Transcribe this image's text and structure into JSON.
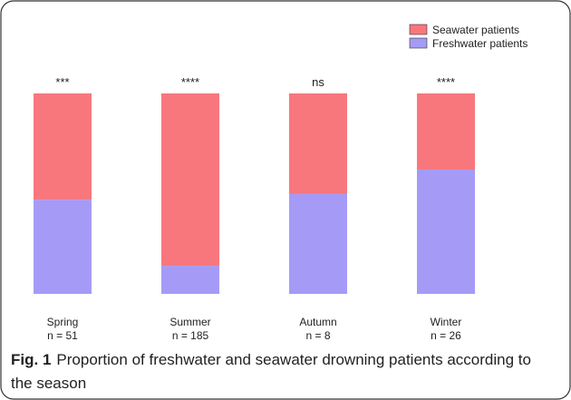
{
  "chart_data": {
    "type": "stacked_bar_100",
    "categories": [
      "Spring",
      "Summer",
      "Autumn",
      "Winter"
    ],
    "sample_sizes": [
      "n = 51",
      "n = 185",
      "n = 8",
      "n = 26"
    ],
    "significance": [
      "***",
      "****",
      "ns",
      "****"
    ],
    "series": [
      {
        "name": "Seawater patients",
        "color": "#f8777d",
        "values": [
          53,
          86,
          50,
          38
        ]
      },
      {
        "name": "Freshwater patients",
        "color": "#a59bf7",
        "values": [
          47,
          14,
          50,
          62
        ]
      }
    ],
    "legend": "top-right",
    "caption_label": "Fig. 1",
    "caption": "Proportion of freshwater and seawater drowning patients according to the season"
  }
}
